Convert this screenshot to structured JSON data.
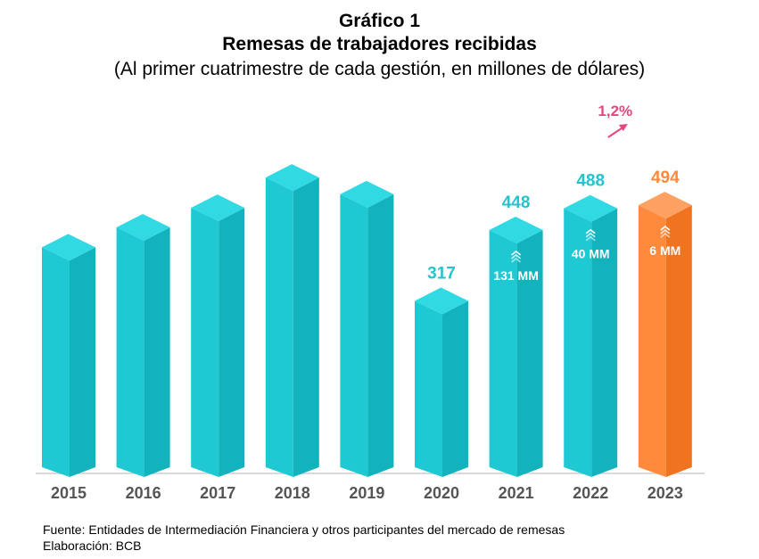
{
  "header": {
    "title": "Gráfico 1",
    "subtitle": "Remesas de trabajadores recibidas",
    "note": "(Al primer cuatrimestre de cada gestión, en millones de dólares)"
  },
  "footer": {
    "source": "Fuente: Entidades de Intermediación Financiera y otros participantes del mercado de remesas",
    "credit": "Elaboración: BCB"
  },
  "colors": {
    "bar_front": "#1FC9D3",
    "bar_side": "#12B3BD",
    "bar_top": "#31D9E3",
    "highlight_front": "#FF8A3C",
    "highlight_side": "#F07320",
    "highlight_top": "#FFA162",
    "label_teal": "#22C4CE",
    "label_orange": "#FF8A3C",
    "pct_pink": "#E6467A",
    "axis_label": "#555555",
    "baseline": "#D9D9D9"
  },
  "chart_data": {
    "type": "bar",
    "title": "Remesas de trabajadores recibidas",
    "categories": [
      "2015",
      "2016",
      "2017",
      "2018",
      "2019",
      "2020",
      "2021",
      "2022",
      "2023"
    ],
    "values": [
      416,
      453,
      489,
      545,
      514,
      317,
      448,
      488,
      494
    ],
    "ylim": [
      0,
      560
    ],
    "value_labels": [
      "",
      "",
      "",
      "",
      "",
      "317",
      "448",
      "488",
      "494"
    ],
    "increase_labels": [
      "",
      "",
      "",
      "",
      "",
      "",
      "131 MM",
      "40 MM",
      "6 MM"
    ],
    "highlight_index": 8,
    "growth_annotation": "1,2%",
    "grid": false
  }
}
